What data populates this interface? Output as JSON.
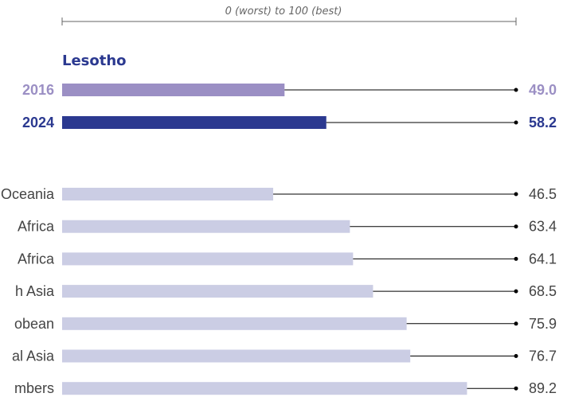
{
  "chart_data": {
    "type": "bar",
    "orientation": "horizontal",
    "scale_label": "0 (worst) to 100 (best)",
    "xlim": [
      0,
      100
    ],
    "country": "Lesotho",
    "country_series": [
      {
        "label": "2016",
        "value": 49.0,
        "display": "49.0",
        "color": "#9b8fc4"
      },
      {
        "label": "2024",
        "value": 58.2,
        "display": "58.2",
        "color": "#2b3990"
      }
    ],
    "comparison_color": "#cbcde4",
    "comparisons": [
      {
        "label": "Oceania",
        "value": 46.5,
        "display": "46.5"
      },
      {
        "label": "Africa",
        "value": 63.4,
        "display": "63.4"
      },
      {
        "label": "Africa",
        "value": 64.1,
        "display": "64.1"
      },
      {
        "label": "h Asia",
        "value": 68.5,
        "display": "68.5"
      },
      {
        "label": "obean",
        "value": 75.9,
        "display": "75.9"
      },
      {
        "label": "al Asia",
        "value": 76.7,
        "display": "76.7"
      },
      {
        "label": "mbers",
        "value": 89.2,
        "display": "89.2"
      }
    ]
  }
}
